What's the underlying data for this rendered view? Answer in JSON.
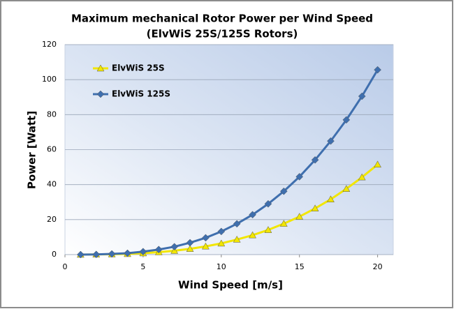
{
  "chart_data": {
    "type": "line",
    "title": [
      "Maximum mechanical Rotor Power per Wind Speed",
      "(ElvWiS 25S/125S Rotors)"
    ],
    "x_label": "Wind Speed [m/s]",
    "y_label": "Power  [Watt]",
    "x": [
      1,
      2,
      3,
      4,
      5,
      6,
      7,
      8,
      9,
      10,
      11,
      12,
      13,
      14,
      15,
      16,
      17,
      18,
      19,
      20
    ],
    "series": [
      {
        "name": "ElvWiS 25S",
        "color": "#f2e600",
        "marker": "triangle",
        "values": [
          0.0,
          0.1,
          0.2,
          0.4,
          0.8,
          1.4,
          2.2,
          3.3,
          4.7,
          6.4,
          8.6,
          11.1,
          14.1,
          17.7,
          21.7,
          26.4,
          31.6,
          37.6,
          44.2,
          51.5
        ]
      },
      {
        "name": "ElvWiS 125S",
        "color": "#3f6fae",
        "marker": "diamond",
        "values": [
          0.0,
          0.1,
          0.4,
          0.8,
          1.7,
          2.9,
          4.5,
          6.8,
          9.6,
          13.2,
          17.6,
          22.8,
          29.0,
          36.2,
          44.5,
          54.1,
          64.9,
          77.0,
          90.5,
          105.6
        ]
      }
    ],
    "xlim": [
      0,
      21
    ],
    "xticks": [
      0,
      5,
      10,
      15,
      20
    ],
    "ylim": [
      0,
      120
    ],
    "yticks": [
      0,
      20,
      40,
      60,
      80,
      100,
      120
    ],
    "grid": true
  }
}
